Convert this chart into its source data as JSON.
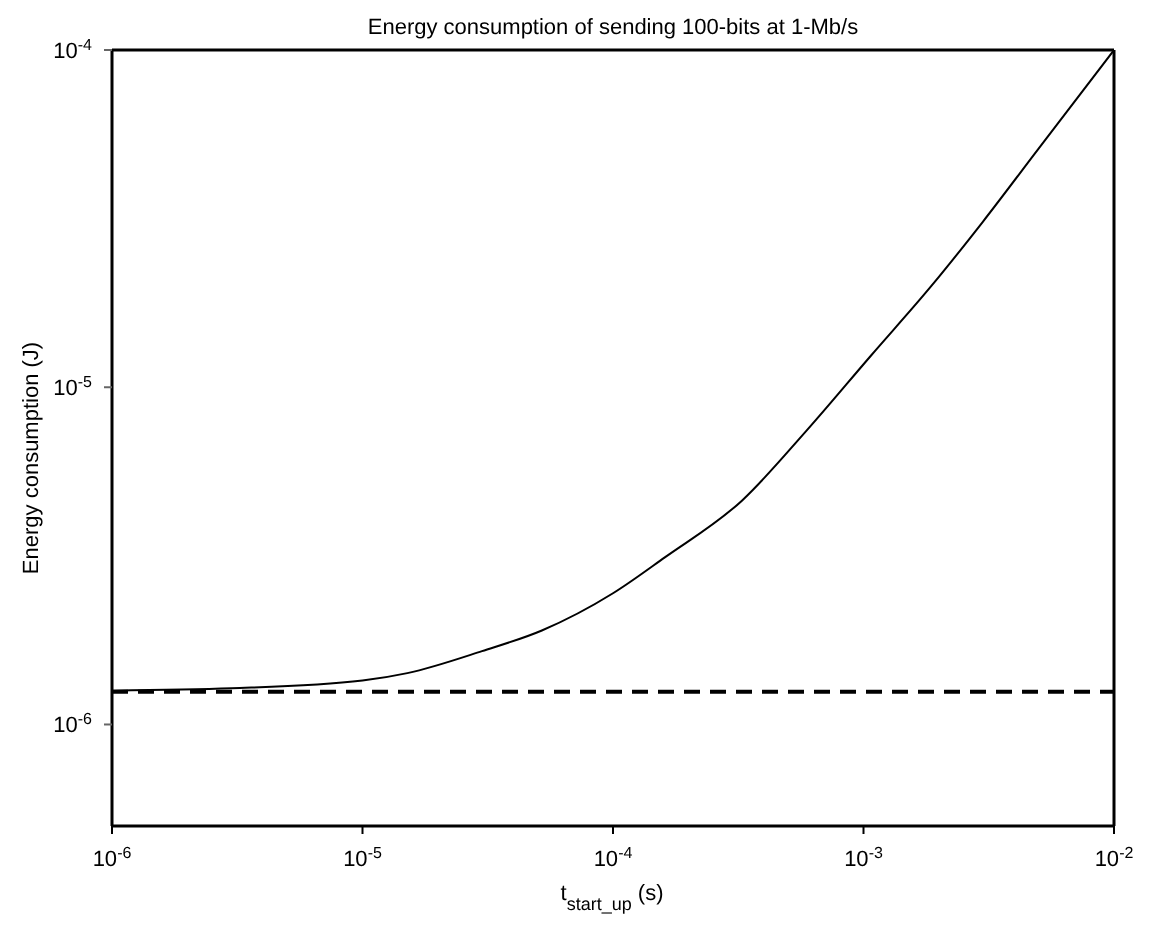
{
  "chart_data": {
    "type": "line",
    "title": "Energy consumption of sending 100-bits at 1-Mb/s",
    "xlabel": "t$_{start_up}$ (s)",
    "ylabel": "Energy consumption (J)",
    "log": "xy",
    "marker": "none",
    "line_style": "solid",
    "xlim": [
      1e-06,
      0.01
    ],
    "ylim": [
      5e-07,
      0.0001
    ],
    "xticks": [
      {
        "value": 1e-06,
        "label": "10$^{-6}$"
      },
      {
        "value": 1e-05,
        "label": "10$^{-5}$"
      },
      {
        "value": 0.0001,
        "label": "10$^{-4}$"
      },
      {
        "value": 0.001,
        "label": "10$^{-3}$"
      },
      {
        "value": 0.01,
        "label": "10$^{-2}$"
      }
    ],
    "yticks": [
      {
        "value": 1e-06,
        "label": "10$^{-6}$"
      },
      {
        "value": 1e-05,
        "label": "10$^{-5}$"
      },
      {
        "value": 0.0001,
        "label": "10$^{-4}$"
      }
    ],
    "series": [
      {
        "color": "#000000",
        "x": [
          1e-06,
          3e-06,
          1e-05,
          1.51e-05,
          3e-05,
          5.2e-05,
          0.0001,
          0.000161,
          0.000327,
          0.00059,
          0.00107,
          0.00187,
          0.003,
          0.005,
          0.01
        ],
        "values": [
          1.26e-06,
          1.28e-06,
          1.35e-06,
          1.42e-06,
          1.65e-06,
          1.9e-06,
          2.45e-06,
          3.13e-06,
          4.61e-06,
          7.41e-06,
          1.24e-05,
          2e-05,
          3.1e-05,
          5.1e-05,
          0.0001
        ]
      }
    ],
    "ref_lines": [
      {
        "axis": "y",
        "value": 1.25e-06,
        "color": "#000000",
        "line_style": "dashed"
      }
    ]
  }
}
